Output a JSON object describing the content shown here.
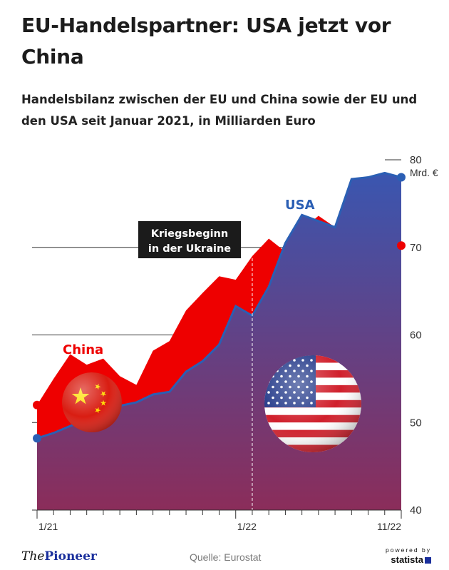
{
  "header": {
    "title": "EU-Handelspartner: USA jetzt vor China",
    "subtitle": "Handelsbilanz zwischen der EU und China sowie der EU und den USA seit Januar 2021, in Milliarden Euro"
  },
  "chart_data": {
    "type": "area",
    "x": [
      "1/21",
      "2/21",
      "3/21",
      "4/21",
      "5/21",
      "6/21",
      "7/21",
      "8/21",
      "9/21",
      "10/21",
      "11/21",
      "12/21",
      "1/22",
      "2/22",
      "3/22",
      "4/22",
      "5/22",
      "6/22",
      "7/22",
      "8/22",
      "9/22",
      "10/22",
      "11/22"
    ],
    "x_tick_labels": [
      "1/21",
      "1/22",
      "11/22"
    ],
    "y_ticks": [
      40,
      50,
      60,
      70,
      80
    ],
    "y_unit": "Mrd. €",
    "ylim": [
      40,
      80
    ],
    "grid": true,
    "series": [
      {
        "name": "China",
        "color": "#ee0000",
        "values": [
          52.0,
          55.0,
          57.8,
          56.6,
          57.3,
          55.3,
          54.3,
          58.2,
          59.3,
          62.8,
          64.8,
          66.7,
          66.3,
          69.0,
          71.0,
          69.5,
          72.0,
          73.6,
          72.3,
          75.8,
          75.5,
          74.7,
          70.2
        ]
      },
      {
        "name": "USA",
        "color": "#2b5fb4",
        "values": [
          48.2,
          48.8,
          49.6,
          50.3,
          51.0,
          51.9,
          52.3,
          53.2,
          53.5,
          55.8,
          57.0,
          58.9,
          63.3,
          62.2,
          65.5,
          70.5,
          73.7,
          73.0,
          72.3,
          77.8,
          78.0,
          78.5,
          78.0
        ]
      }
    ],
    "annotations": [
      {
        "text": "Kriegsbeginn in der Ukraine",
        "line1": "Kriegsbeginn",
        "line2": "in der Ukraine",
        "x": "2/22"
      }
    ],
    "colors": {
      "fill_top": "#3a56b0",
      "fill_bottom": "#8b2d5a",
      "china": "#ee0000",
      "usa_line": "#2b5fb4",
      "annotation_bg": "#1b1b1b"
    }
  },
  "footer": {
    "brand_the": "The",
    "brand_pioneer": "Pioneer",
    "source": "Quelle: Eurostat",
    "statista_powered": "powered by",
    "statista_name": "statista"
  }
}
